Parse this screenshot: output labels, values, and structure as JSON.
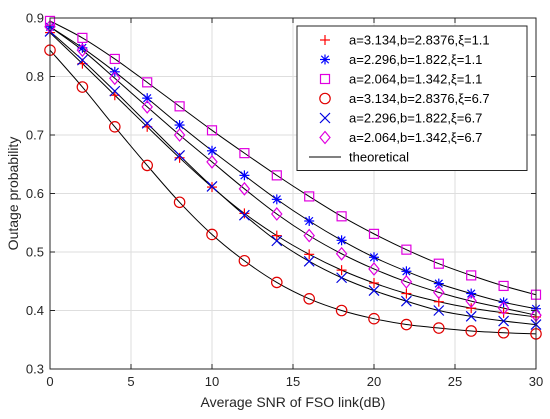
{
  "chart_data": {
    "type": "line",
    "xlabel": "Average SNR of FSO link(dB)",
    "ylabel": "Outage probability",
    "xlim": [
      0,
      30
    ],
    "ylim": [
      0.3,
      0.9
    ],
    "xticks": [
      0,
      5,
      10,
      15,
      20,
      25,
      30
    ],
    "yticks": [
      0.3,
      0.4,
      0.5,
      0.6,
      0.7,
      0.8,
      0.9
    ],
    "xtick_labels": [
      "0",
      "5",
      "10",
      "15",
      "20",
      "25",
      "30"
    ],
    "ytick_labels": [
      "0.3",
      "0.4",
      "0.5",
      "0.6",
      "0.7",
      "0.8",
      "0.9"
    ],
    "grid": true,
    "legend_position": "top-right",
    "x": [
      0,
      2,
      4,
      6,
      8,
      10,
      12,
      14,
      16,
      18,
      20,
      22,
      24,
      26,
      28,
      30
    ],
    "series": [
      {
        "name": "a=3.134,b=2.8376,ξ=1.1",
        "marker": "plus",
        "color": "#ff0000",
        "values": [
          0.875,
          0.822,
          0.768,
          0.714,
          0.661,
          0.611,
          0.566,
          0.528,
          0.496,
          0.469,
          0.447,
          0.429,
          0.415,
          0.404,
          0.396,
          0.389
        ]
      },
      {
        "name": "a=2.296,b=1.822,ξ=1.1",
        "marker": "asterisk",
        "color": "#0000ff",
        "values": [
          0.885,
          0.849,
          0.808,
          0.763,
          0.717,
          0.673,
          0.631,
          0.59,
          0.553,
          0.52,
          0.491,
          0.467,
          0.446,
          0.429,
          0.414,
          0.403
        ]
      },
      {
        "name": "a=2.064,b=1.342,ξ=1.1",
        "marker": "square",
        "color": "#e000e0",
        "values": [
          0.895,
          0.866,
          0.83,
          0.79,
          0.749,
          0.708,
          0.669,
          0.631,
          0.595,
          0.561,
          0.531,
          0.504,
          0.48,
          0.46,
          0.442,
          0.427
        ]
      },
      {
        "name": "a=3.134,b=2.8376,ξ=6.7",
        "marker": "circle",
        "color": "#e00000",
        "values": [
          0.845,
          0.782,
          0.714,
          0.648,
          0.585,
          0.53,
          0.485,
          0.448,
          0.42,
          0.4,
          0.386,
          0.376,
          0.37,
          0.365,
          0.362,
          0.36
        ]
      },
      {
        "name": "a=2.296,b=1.822,ξ=6.7",
        "marker": "cross",
        "color": "#0000e0",
        "values": [
          0.877,
          0.828,
          0.775,
          0.72,
          0.665,
          0.612,
          0.563,
          0.519,
          0.484,
          0.456,
          0.434,
          0.416,
          0.4,
          0.39,
          0.382,
          0.376
        ]
      },
      {
        "name": "a=2.064,b=1.342,ξ=6.7",
        "marker": "diamond",
        "color": "#e000e0",
        "values": [
          0.885,
          0.845,
          0.797,
          0.748,
          0.7,
          0.654,
          0.608,
          0.565,
          0.528,
          0.497,
          0.471,
          0.449,
          0.431,
          0.416,
          0.404,
          0.392
        ]
      }
    ],
    "theoretical_legend": "theoretical"
  }
}
